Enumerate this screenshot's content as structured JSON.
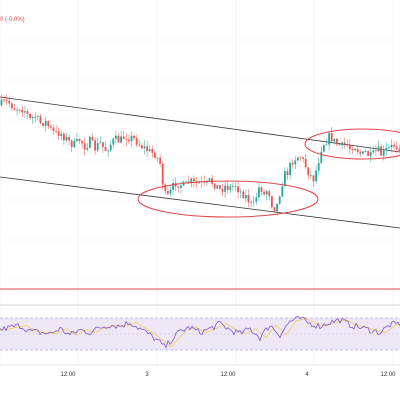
{
  "legend": {
    "change_text": "0 (-0.0%)"
  },
  "time_axis": {
    "labels": [
      "12:00",
      "3",
      "12:00",
      "4",
      "12:00"
    ]
  },
  "colors": {
    "up": "#26a69a",
    "down": "#ef5350",
    "channel": "#333333",
    "ellipse": "#e0464e",
    "hline": "#e0464e",
    "rsi_line": "#7e57c2",
    "rsi_band": "#ede7f6",
    "rsi_ma": "#f2c94c"
  },
  "icons": {
    "wick_style": "candlestick"
  },
  "chart_data": {
    "type": "candlestick",
    "x_ticks": [
      "12:00",
      "3",
      "12:00",
      "4",
      "12:00"
    ],
    "price_profile": [
      [
        0,
        0.4
      ],
      [
        5,
        0.2
      ],
      [
        10,
        0.3
      ],
      [
        15,
        0.6
      ],
      [
        20,
        0.5
      ],
      [
        25,
        0.7
      ],
      [
        30,
        1.2
      ],
      [
        35,
        1.0
      ],
      [
        40,
        1.4
      ],
      [
        45,
        1.3
      ],
      [
        50,
        1.7
      ],
      [
        55,
        2.0
      ],
      [
        60,
        1.9
      ],
      [
        65,
        2.2
      ],
      [
        70,
        2.5
      ],
      [
        75,
        2.6
      ],
      [
        80,
        2.3
      ],
      [
        85,
        2.7
      ],
      [
        90,
        2.4
      ],
      [
        95,
        2.8
      ],
      [
        100,
        2.5
      ],
      [
        105,
        2.9
      ],
      [
        110,
        2.6
      ],
      [
        115,
        2.3
      ],
      [
        120,
        2.4
      ],
      [
        125,
        2.1
      ],
      [
        130,
        2.2
      ],
      [
        135,
        2.3
      ],
      [
        140,
        2.6
      ],
      [
        145,
        2.8
      ],
      [
        150,
        3.0
      ],
      [
        155,
        3.1
      ],
      [
        160,
        3.6
      ],
      [
        163,
        4.8
      ],
      [
        166,
        5.6
      ],
      [
        170,
        5.3
      ],
      [
        175,
        4.7
      ],
      [
        180,
        4.8
      ],
      [
        185,
        4.9
      ],
      [
        190,
        4.6
      ],
      [
        195,
        4.8
      ],
      [
        200,
        4.7
      ],
      [
        205,
        4.9
      ],
      [
        210,
        4.6
      ],
      [
        215,
        4.8
      ],
      [
        220,
        5.1
      ],
      [
        225,
        4.9
      ],
      [
        230,
        5.0
      ],
      [
        235,
        4.8
      ],
      [
        240,
        5.2
      ],
      [
        245,
        5.4
      ],
      [
        250,
        5.8
      ],
      [
        253,
        6.1
      ],
      [
        256,
        5.5
      ],
      [
        260,
        4.8
      ],
      [
        264,
        5.4
      ],
      [
        268,
        5.0
      ],
      [
        272,
        5.9
      ],
      [
        276,
        6.2
      ],
      [
        280,
        5.2
      ],
      [
        284,
        4.3
      ],
      [
        288,
        4.1
      ],
      [
        292,
        3.5
      ],
      [
        296,
        3.3
      ],
      [
        300,
        3.2
      ],
      [
        305,
        3.7
      ],
      [
        310,
        4.3
      ],
      [
        314,
        4.5
      ],
      [
        318,
        3.6
      ],
      [
        322,
        2.6
      ],
      [
        326,
        2.4
      ],
      [
        330,
        2.1
      ],
      [
        334,
        2.4
      ],
      [
        338,
        2.6
      ],
      [
        342,
        2.7
      ],
      [
        346,
        2.5
      ],
      [
        350,
        2.8
      ],
      [
        354,
        2.6
      ],
      [
        358,
        2.9
      ],
      [
        362,
        3.2
      ],
      [
        366,
        3.0
      ],
      [
        370,
        3.3
      ],
      [
        374,
        3.1
      ],
      [
        378,
        2.9
      ],
      [
        382,
        3.2
      ],
      [
        386,
        2.9
      ],
      [
        390,
        2.8
      ],
      [
        394,
        2.6
      ],
      [
        398,
        2.7
      ],
      [
        400,
        2.7
      ]
    ],
    "rsi_profile": [
      [
        0,
        48
      ],
      [
        10,
        52
      ],
      [
        20,
        55
      ],
      [
        30,
        46
      ],
      [
        40,
        44
      ],
      [
        50,
        42
      ],
      [
        60,
        50
      ],
      [
        70,
        40
      ],
      [
        80,
        48
      ],
      [
        90,
        44
      ],
      [
        100,
        52
      ],
      [
        110,
        56
      ],
      [
        120,
        54
      ],
      [
        130,
        60
      ],
      [
        140,
        50
      ],
      [
        150,
        40
      ],
      [
        160,
        28
      ],
      [
        165,
        20
      ],
      [
        170,
        30
      ],
      [
        180,
        46
      ],
      [
        190,
        52
      ],
      [
        200,
        44
      ],
      [
        210,
        50
      ],
      [
        220,
        58
      ],
      [
        230,
        48
      ],
      [
        240,
        42
      ],
      [
        250,
        50
      ],
      [
        260,
        36
      ],
      [
        270,
        56
      ],
      [
        280,
        40
      ],
      [
        290,
        62
      ],
      [
        300,
        66
      ],
      [
        310,
        58
      ],
      [
        320,
        54
      ],
      [
        330,
        60
      ],
      [
        340,
        64
      ],
      [
        350,
        56
      ],
      [
        360,
        52
      ],
      [
        370,
        48
      ],
      [
        380,
        44
      ],
      [
        390,
        56
      ],
      [
        400,
        58
      ]
    ]
  }
}
